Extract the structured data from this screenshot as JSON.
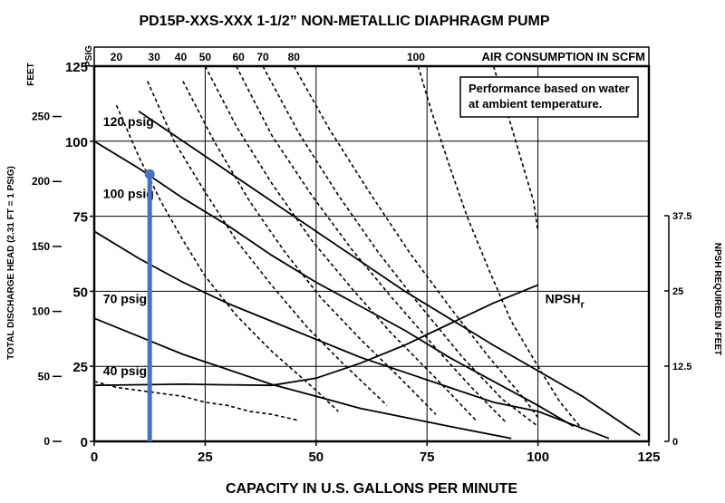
{
  "chart_data": {
    "type": "line",
    "title": "PD15P-XXS-XXX   1-1/2” NON-METALLIC DIAPHRAGM PUMP",
    "xlabel": "CAPACITY IN U.S. GALLONS PER MINUTE",
    "xlim": [
      0,
      125
    ],
    "xticks": [
      "0",
      "25",
      "50",
      "75",
      "100",
      "125"
    ],
    "ylabel_left": "TOTAL DISCHARGE HEAD (2.31 FT = 1 PSIG)",
    "ylim_psig": [
      0,
      125
    ],
    "yticks_psig": [
      "0",
      "25",
      "50",
      "75",
      "100",
      "125"
    ],
    "psig_unit_label": "PSIG",
    "feet_unit_label": "FEET",
    "ylim_feet": [
      0,
      288.75
    ],
    "yticks_feet": [
      "0",
      "50",
      "100",
      "150",
      "200",
      "250"
    ],
    "ylabel_right": "NPSH REQUIRED IN FEET",
    "ylim_right": [
      0,
      50
    ],
    "yticks_right": [
      "0",
      "12.5",
      "25",
      "37.5"
    ],
    "top_axis_label": "AIR CONSUMPTION IN SCFM",
    "top_ticks": [
      "20",
      "30",
      "40",
      "50",
      "60",
      "70",
      "80",
      "100"
    ],
    "note": [
      "Performance based on water",
      "at ambient temperature."
    ],
    "grid": true,
    "series": [
      {
        "name": "120 psig",
        "style": "solid",
        "color": "#000000",
        "x": [
          10,
          30,
          50,
          70,
          90,
          110,
          123
        ],
        "y": [
          110,
          90,
          70,
          50,
          32,
          15,
          2
        ]
      },
      {
        "name": "100 psig",
        "style": "solid",
        "color": "#000000",
        "x": [
          0,
          10,
          20,
          30,
          40,
          50,
          60,
          70,
          80,
          90,
          100,
          108
        ],
        "y": [
          100,
          91,
          81,
          72,
          62,
          53,
          45,
          37,
          28,
          20,
          12,
          5
        ]
      },
      {
        "name": "70 psig",
        "style": "solid",
        "color": "#000000",
        "x": [
          0,
          10,
          20,
          30,
          40,
          50,
          60,
          70,
          80,
          90,
          100,
          116
        ],
        "y": [
          70,
          61,
          53,
          46,
          40,
          34,
          28,
          23,
          18,
          13,
          10,
          1
        ]
      },
      {
        "name": "40 psig",
        "style": "solid",
        "color": "#000000",
        "x": [
          0,
          10,
          20,
          30,
          40,
          50,
          60,
          70,
          80,
          94
        ],
        "y": [
          41,
          35,
          29,
          24,
          19,
          15,
          11,
          8,
          5,
          1
        ]
      },
      {
        "name": "NPSHr",
        "subscript": "r",
        "axis": "right",
        "style": "solid",
        "color": "#000000",
        "x": [
          0,
          20,
          30,
          40,
          50,
          60,
          70,
          80,
          90,
          100
        ],
        "y": [
          9.3,
          9.5,
          9.4,
          9.3,
          10.5,
          13,
          16,
          19.5,
          23,
          26
        ]
      },
      {
        "name": "",
        "style": "dashed",
        "color": "#000000",
        "x": [
          5,
          10,
          15,
          20,
          25,
          32,
          40,
          50,
          55
        ],
        "y": [
          112,
          95,
          80,
          67,
          55,
          42,
          30,
          17,
          10
        ]
      },
      {
        "name": "",
        "style": "dashed",
        "color": "#000000",
        "x": [
          12,
          18,
          25,
          32,
          40,
          48,
          56,
          66
        ],
        "y": [
          120,
          100,
          83,
          67,
          52,
          38,
          26,
          12
        ]
      },
      {
        "name": "",
        "style": "dashed",
        "color": "#000000",
        "x": [
          20,
          27,
          35,
          43,
          51,
          60,
          69,
          77
        ],
        "y": [
          120,
          100,
          80,
          63,
          48,
          34,
          21,
          9
        ]
      },
      {
        "name": "",
        "style": "dashed",
        "color": "#000000",
        "x": [
          25,
          32,
          40,
          49,
          58,
          67,
          77,
          86
        ],
        "y": [
          125,
          105,
          86,
          67,
          51,
          36,
          21,
          7
        ]
      },
      {
        "name": "",
        "style": "dashed",
        "color": "#000000",
        "x": [
          32,
          40,
          49,
          58,
          67,
          77,
          85,
          93
        ],
        "y": [
          125,
          102,
          82,
          64,
          48,
          31,
          18,
          6
        ]
      },
      {
        "name": "",
        "style": "dashed",
        "color": "#000000",
        "x": [
          38,
          46,
          55,
          64,
          73,
          83,
          92,
          100
        ],
        "y": [
          125,
          103,
          82,
          63,
          46,
          28,
          14,
          5
        ]
      },
      {
        "name": "",
        "style": "dashed",
        "color": "#000000",
        "x": [
          45,
          53,
          62,
          71,
          80,
          89,
          97,
          100
        ],
        "y": [
          125,
          104,
          83,
          63,
          45,
          28,
          14,
          8
        ]
      },
      {
        "name": "",
        "style": "dashed",
        "color": "#000000",
        "x": [
          73,
          76,
          80,
          84,
          89,
          94,
          100,
          105,
          110
        ],
        "y": [
          125,
          110,
          92,
          75,
          57,
          40,
          25,
          13,
          4
        ]
      },
      {
        "name": "",
        "style": "dashed",
        "color": "#000000",
        "x": [
          0,
          5,
          10,
          15,
          20,
          25,
          30,
          35,
          40,
          46
        ],
        "y": [
          20,
          18,
          17,
          16,
          15,
          13,
          12,
          10,
          9,
          7
        ]
      },
      {
        "name": "",
        "style": "dashed",
        "color": "#000000",
        "x": [
          90,
          93,
          96,
          99,
          100
        ],
        "y": [
          125,
          110,
          95,
          80,
          70
        ]
      }
    ],
    "marker": {
      "x": 12.5,
      "y": 89,
      "color": "#4472c4"
    }
  }
}
